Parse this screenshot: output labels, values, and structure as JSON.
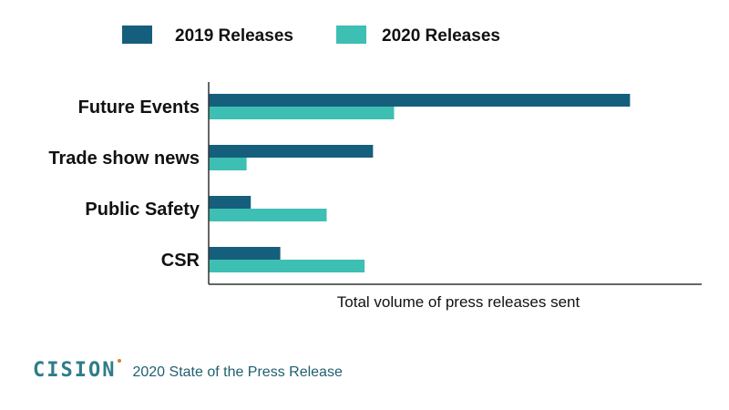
{
  "chart_data": {
    "type": "bar",
    "orientation": "horizontal",
    "categories": [
      "Future Events",
      "Trade show news",
      "Public Safety",
      "CSR"
    ],
    "series": [
      {
        "name": "2019 Releases",
        "color": "#155f7d",
        "values": [
          100,
          39,
          10,
          17
        ]
      },
      {
        "name": "2020 Releases",
        "color": "#3dbfb3",
        "values": [
          44,
          9,
          28,
          37
        ]
      }
    ],
    "xlabel": "Total volume of press releases sent",
    "ylabel": "",
    "xlim": [
      0,
      117
    ],
    "grid": false,
    "legend_position": "top"
  },
  "footer": {
    "brand": "CISION",
    "text": "2020 State of the Press Release"
  }
}
